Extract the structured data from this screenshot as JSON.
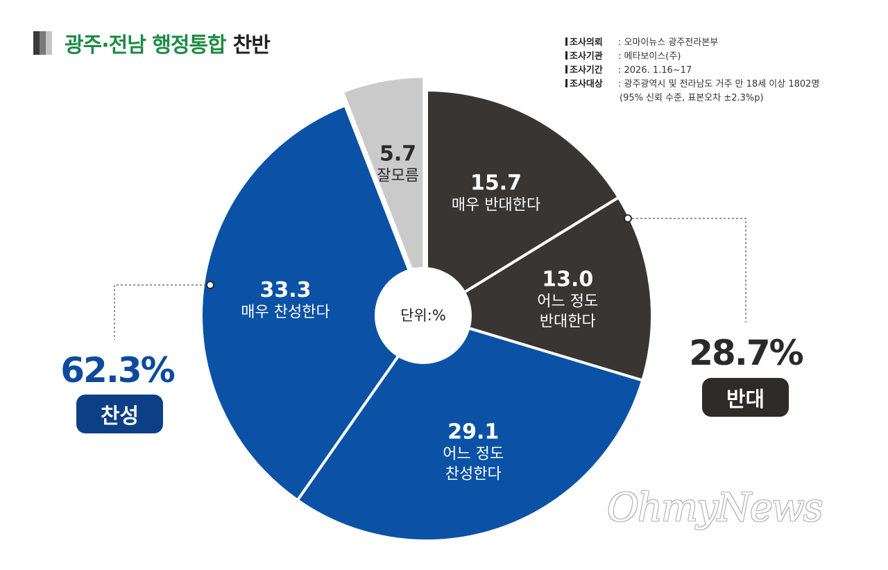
{
  "title": {
    "main": "광주·전남 행정통합",
    "sub": "찬반"
  },
  "survey_info": [
    {
      "key": "조사의뢰",
      "value": ": 오마이뉴스 광주전라본부"
    },
    {
      "key": "조사기관",
      "value": ": 메타보이스(주)"
    },
    {
      "key": "조사기간",
      "value": ": 2026. 1.16~17"
    },
    {
      "key": "조사대상",
      "value": ": 광주광역시 및 전라남도 거주 만 18세 이상 1802명"
    }
  ],
  "survey_note": "(95% 신뢰 수준, 표본오차 ±2.3%p)",
  "unit_label": "단위:%",
  "totals": {
    "for": {
      "value": "62.3%",
      "label": "찬성"
    },
    "against": {
      "value": "28.7%",
      "label": "반대"
    }
  },
  "watermark": "OhmyNews",
  "colors": {
    "title_green": "#1e8a44",
    "support_blue": "#0b52a6",
    "oppose_dark": "#383533",
    "unknown_gray": "#cacaca"
  },
  "chart_data": {
    "type": "pie",
    "unit": "%",
    "slices": [
      {
        "value": 15.7,
        "value_label": "15.7",
        "label_lines": [
          "매우 반대한다"
        ],
        "color": "#383533",
        "text_color": "#ffffff"
      },
      {
        "value": 13.0,
        "value_label": "13.0",
        "label_lines": [
          "어느 정도",
          "반대한다"
        ],
        "color": "#383533",
        "text_color": "#ffffff"
      },
      {
        "value": 29.1,
        "value_label": "29.1",
        "label_lines": [
          "어느 정도",
          "찬성한다"
        ],
        "color": "#0b52a6",
        "text_color": "#ffffff"
      },
      {
        "value": 33.3,
        "value_label": "33.3",
        "label_lines": [
          "매우 찬성한다"
        ],
        "color": "#0b52a6",
        "text_color": "#ffffff"
      },
      {
        "value": 5.7,
        "value_label": "5.7",
        "label_lines": [
          "잘모름"
        ],
        "color": "#cacaca",
        "text_color": "#2a2a2a",
        "exploded": true
      }
    ]
  }
}
